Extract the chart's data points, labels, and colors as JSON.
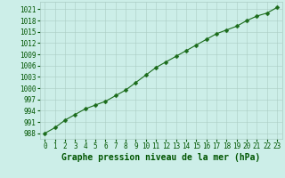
{
  "x": [
    0,
    1,
    2,
    3,
    4,
    5,
    6,
    7,
    8,
    9,
    10,
    11,
    12,
    13,
    14,
    15,
    16,
    17,
    18,
    19,
    20,
    21,
    22,
    23
  ],
  "y": [
    988,
    989.5,
    991.5,
    993,
    994.5,
    995.5,
    996.5,
    998.0,
    999.5,
    1001.5,
    1003.5,
    1005.5,
    1007.0,
    1008.5,
    1010.0,
    1011.5,
    1013.0,
    1014.5,
    1015.5,
    1016.5,
    1018.0,
    1019.2,
    1020.0,
    1021.5
  ],
  "line_color": "#1a6b1a",
  "marker": "D",
  "marker_size": 2.5,
  "bg_color": "#cceee8",
  "grid_color": "#aaccc4",
  "xlabel": "Graphe pression niveau de la mer (hPa)",
  "xlabel_color": "#005500",
  "ylabel_ticks": [
    988,
    991,
    994,
    997,
    1000,
    1003,
    1006,
    1009,
    1012,
    1015,
    1018,
    1021
  ],
  "xlim": [
    -0.5,
    23.5
  ],
  "ylim": [
    986.5,
    1023
  ],
  "tick_color": "#005500",
  "tick_fontsize": 5.5,
  "xlabel_fontsize": 7.0,
  "linewidth": 0.8
}
